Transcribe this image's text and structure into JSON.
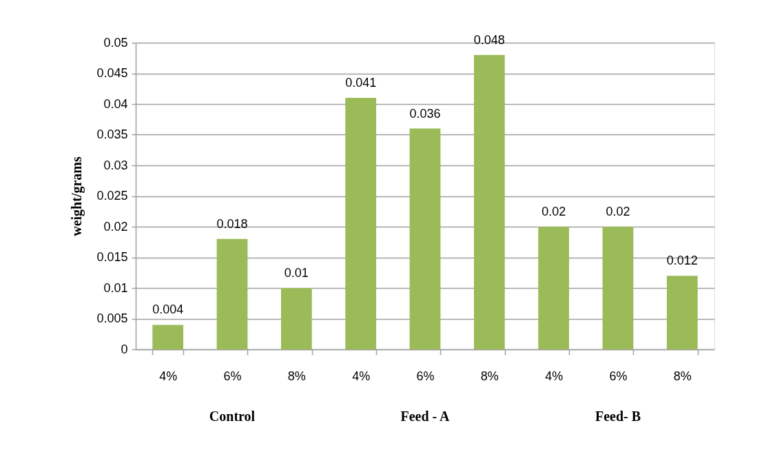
{
  "chart_data": {
    "type": "bar",
    "categories": [
      "4%",
      "6%",
      "8%",
      "4%",
      "6%",
      "8%",
      "4%",
      "6%",
      "8%"
    ],
    "values": [
      0.004,
      0.018,
      0.01,
      0.041,
      0.036,
      0.048,
      0.02,
      0.02,
      0.012
    ],
    "color": "#9bbb59",
    "ylabel": "weight/grams",
    "ylim": [
      0,
      0.05
    ],
    "yticks": [
      0,
      0.005,
      0.01,
      0.015,
      0.02,
      0.025,
      0.03,
      0.035,
      0.04,
      0.045,
      0.05
    ],
    "grid": "y",
    "data_labels": true,
    "annotations": [
      "Control",
      "Feed - A",
      "Feed- B"
    ]
  }
}
